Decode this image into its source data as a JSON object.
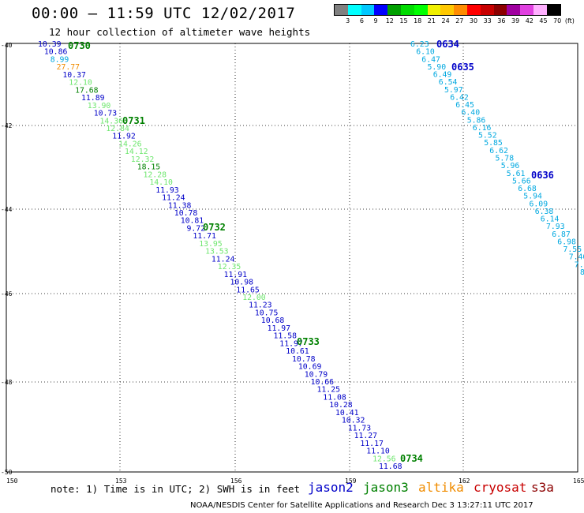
{
  "header": {
    "title": "00:00 – 11:59 UTC 12/02/2017",
    "subtitle": "12 hour collection of altimeter wave heights"
  },
  "colorbar": {
    "colors": [
      "#808080",
      "#00ffff",
      "#00c8ff",
      "#0000ff",
      "#00a000",
      "#00dc00",
      "#00ff00",
      "#f0f000",
      "#ffc800",
      "#ff8c00",
      "#ff0000",
      "#c80000",
      "#8c0000",
      "#a000a0",
      "#e040e0",
      "#ffb0ff",
      "#000000"
    ],
    "labels": [
      "3",
      "6",
      "9",
      "12",
      "15",
      "18",
      "21",
      "24",
      "27",
      "30",
      "33",
      "36",
      "39",
      "42",
      "45",
      "70",
      "(ft)"
    ]
  },
  "map": {
    "x_ticks": [
      "150",
      "153",
      "156",
      "159",
      "162",
      "165"
    ],
    "y_ticks": [
      "-40",
      "-42",
      "-44",
      "-46",
      "-48",
      "-50"
    ]
  },
  "track_colors": {
    "c": "#00a8e0",
    "b": "#0000c8",
    "g": "#6ee66e",
    "d": "#008000",
    "o": "#f08c00"
  },
  "track1": [
    [
      "10.39",
      "b"
    ],
    [
      "10.86",
      "b"
    ],
    [
      "8.99",
      "c"
    ],
    [
      "27.77",
      "o"
    ],
    [
      "10.37",
      "b"
    ],
    [
      "12.10",
      "g"
    ],
    [
      "17.68",
      "d"
    ],
    [
      "11.89",
      "b"
    ],
    [
      "13.90",
      "g"
    ],
    [
      "10.73",
      "b"
    ],
    [
      "14.36",
      "g"
    ],
    [
      "12.84",
      "g"
    ],
    [
      "11.92",
      "b"
    ],
    [
      "14.26",
      "g"
    ],
    [
      "14.12",
      "g"
    ],
    [
      "12.32",
      "g"
    ],
    [
      "18.15",
      "d"
    ],
    [
      "12.28",
      "g"
    ],
    [
      "14.10",
      "g"
    ],
    [
      "11.93",
      "b"
    ],
    [
      "11.24",
      "b"
    ],
    [
      "11.38",
      "b"
    ],
    [
      "10.78",
      "b"
    ],
    [
      "10.81",
      "b"
    ],
    [
      "9.72",
      "b"
    ],
    [
      "11.71",
      "b"
    ],
    [
      "13.95",
      "g"
    ],
    [
      "13.53",
      "g"
    ],
    [
      "11.24",
      "b"
    ],
    [
      "12.35",
      "g"
    ],
    [
      "11.91",
      "b"
    ],
    [
      "10.98",
      "b"
    ],
    [
      "11.65",
      "b"
    ],
    [
      "12.00",
      "g"
    ],
    [
      "11.23",
      "b"
    ],
    [
      "10.75",
      "b"
    ],
    [
      "10.68",
      "b"
    ],
    [
      "11.97",
      "b"
    ],
    [
      "11.58",
      "b"
    ],
    [
      "11.97",
      "b"
    ],
    [
      "10.61",
      "b"
    ],
    [
      "10.78",
      "b"
    ],
    [
      "10.69",
      "b"
    ],
    [
      "10.79",
      "b"
    ],
    [
      "10.66",
      "b"
    ],
    [
      "11.25",
      "b"
    ],
    [
      "11.08",
      "b"
    ],
    [
      "10.28",
      "b"
    ],
    [
      "10.41",
      "b"
    ],
    [
      "10.32",
      "b"
    ],
    [
      "11.73",
      "b"
    ],
    [
      "11.27",
      "b"
    ],
    [
      "11.17",
      "b"
    ],
    [
      "11.10",
      "b"
    ],
    [
      "12.56",
      "g"
    ],
    [
      "11.68",
      "b"
    ]
  ],
  "track2": [
    "6.23",
    "6.10",
    "6.47",
    "5.90",
    "6.49",
    "6.54",
    "5.97",
    "6.42",
    "6.45",
    "6.40",
    "5.86",
    "6.16",
    "5.52",
    "5.85",
    "6.62",
    "5.78",
    "5.96",
    "5.61",
    "5.66",
    "6.68",
    "5.94",
    "6.09",
    "6.38",
    "6.14",
    "7.93",
    "6.87",
    "6.98",
    "7.55",
    "7.46",
    "7.39",
    "8"
  ],
  "time_labels": [
    {
      "text": "0730",
      "color": "#008000"
    },
    {
      "text": "0731",
      "color": "#008000"
    },
    {
      "text": "0732",
      "color": "#008000"
    },
    {
      "text": "0733",
      "color": "#008000"
    },
    {
      "text": "0734",
      "color": "#008000"
    },
    {
      "text": "0634",
      "color": "#0000c8"
    },
    {
      "text": "0635",
      "color": "#0000c8"
    },
    {
      "text": "0636",
      "color": "#0000c8"
    }
  ],
  "footer": {
    "note": "note: 1) Time is in UTC; 2) SWH is in feet",
    "credit": "NOAA/NESDIS Center for Satellite Applications and Research   Dec  3 13:27:11 UTC 2017"
  },
  "legend": [
    {
      "name": "jason2",
      "color": "#0000c8"
    },
    {
      "name": "jason3",
      "color": "#008000"
    },
    {
      "name": "altika",
      "color": "#f08c00"
    },
    {
      "name": "cryosat",
      "color": "#c80000"
    },
    {
      "name": "s3a",
      "color": "#8c0000"
    }
  ]
}
